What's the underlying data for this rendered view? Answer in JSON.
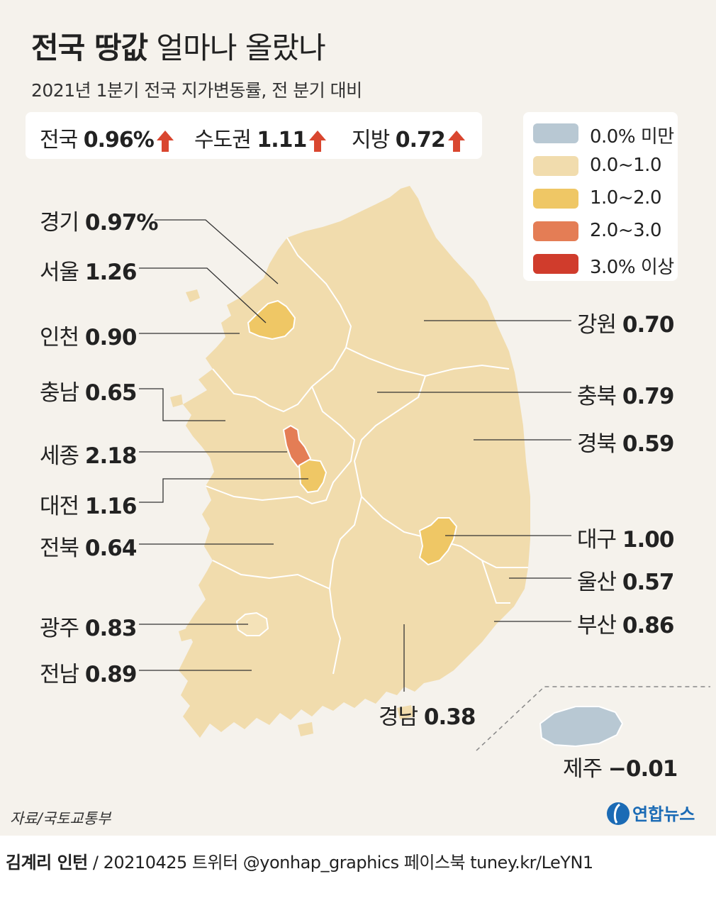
{
  "title": {
    "bold": "전국 땅값",
    "rest": "얼마나 올랐나"
  },
  "subtitle": "2021년 1분기 전국 지가변동률, 전 분기 대비",
  "summary": [
    {
      "name": "전국",
      "value": "0.96%",
      "direction": "up"
    },
    {
      "name": "수도권",
      "value": "1.11",
      "direction": "up"
    },
    {
      "name": "지방",
      "value": "0.72",
      "direction": "up"
    }
  ],
  "legend": [
    {
      "label": "0.0% 미만",
      "color": "#b8c8d3"
    },
    {
      "label": "0.0~1.0",
      "color": "#f1dcad"
    },
    {
      "label": "1.0~2.0",
      "color": "#efc765"
    },
    {
      "label": "2.0~3.0",
      "color": "#e47d55"
    },
    {
      "label": "3.0% 이상",
      "color": "#d03c2c"
    }
  ],
  "regions": {
    "gyeonggi": {
      "name": "경기",
      "value": "0.97%"
    },
    "seoul": {
      "name": "서울",
      "value": "1.26"
    },
    "incheon": {
      "name": "인천",
      "value": "0.90"
    },
    "chungnam": {
      "name": "충남",
      "value": "0.65"
    },
    "sejong": {
      "name": "세종",
      "value": "2.18"
    },
    "daejeon": {
      "name": "대전",
      "value": "1.16"
    },
    "jeonbuk": {
      "name": "전북",
      "value": "0.64"
    },
    "gwangju": {
      "name": "광주",
      "value": "0.83"
    },
    "jeonnam": {
      "name": "전남",
      "value": "0.89"
    },
    "gangwon": {
      "name": "강원",
      "value": "0.70"
    },
    "chungbuk": {
      "name": "충북",
      "value": "0.79"
    },
    "gyeongbuk": {
      "name": "경북",
      "value": "0.59"
    },
    "daegu": {
      "name": "대구",
      "value": "1.00"
    },
    "ulsan": {
      "name": "울산",
      "value": "0.57"
    },
    "busan": {
      "name": "부산",
      "value": "0.86"
    },
    "gyeongnam": {
      "name": "경남",
      "value": "0.38"
    },
    "jeju": {
      "name": "제주",
      "value": "−0.01"
    }
  },
  "colors": {
    "base": "#f1dcad",
    "mid": "#efc765",
    "high": "#e47d55",
    "negative": "#b8c8d3",
    "arrow": "#d9462f",
    "border": "#ffffff"
  },
  "source": "자료/국토교통부",
  "logo": "연합뉴스",
  "credit": {
    "author": "김계리 인턴",
    "rest": "/ 20210425  트위터 @yonhap_graphics  페이스북 tuney.kr/LeYN1"
  }
}
